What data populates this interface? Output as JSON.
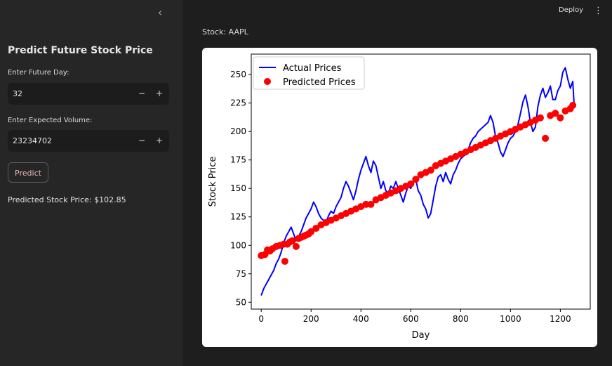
{
  "header": {
    "deploy_label": "Deploy",
    "menu_icon": "kebab-menu-icon"
  },
  "sidebar": {
    "collapse_icon": "chevron-left-icon",
    "title": "Predict Future Stock Price",
    "future_day": {
      "label": "Enter Future Day:",
      "value": "32"
    },
    "volume": {
      "label": "Enter Expected Volume:",
      "value": "23234702"
    },
    "stepper_minus": "−",
    "stepper_plus": "+",
    "predict_label": "Predict",
    "result_text": "Predicted Stock Price: $102.85"
  },
  "main": {
    "stock_label": "Stock: AAPL"
  },
  "chart_data": {
    "type": "line",
    "xlabel": "Day",
    "ylabel": "Stock Price",
    "xlim": [
      -40,
      1320
    ],
    "ylim": [
      44,
      268
    ],
    "xticks": [
      0,
      200,
      400,
      600,
      800,
      1000,
      1200
    ],
    "yticks": [
      50,
      75,
      100,
      125,
      150,
      175,
      200,
      225,
      250
    ],
    "legend_position": "top-left",
    "series": [
      {
        "name": "Actual Prices",
        "kind": "line",
        "color": "#0000ff",
        "x": [
          0,
          10,
          20,
          30,
          40,
          50,
          60,
          70,
          80,
          90,
          100,
          110,
          120,
          130,
          140,
          150,
          160,
          170,
          180,
          190,
          200,
          210,
          220,
          230,
          240,
          250,
          260,
          270,
          280,
          290,
          300,
          310,
          320,
          330,
          340,
          350,
          360,
          370,
          380,
          390,
          400,
          410,
          420,
          430,
          440,
          450,
          460,
          470,
          480,
          490,
          500,
          510,
          520,
          530,
          540,
          550,
          560,
          570,
          580,
          590,
          600,
          610,
          620,
          630,
          640,
          650,
          660,
          670,
          680,
          690,
          700,
          710,
          720,
          730,
          740,
          750,
          760,
          770,
          780,
          790,
          800,
          810,
          820,
          830,
          840,
          850,
          860,
          870,
          880,
          890,
          900,
          910,
          920,
          930,
          940,
          950,
          960,
          970,
          980,
          990,
          1000,
          1010,
          1020,
          1030,
          1040,
          1050,
          1060,
          1070,
          1080,
          1090,
          1100,
          1110,
          1120,
          1130,
          1140,
          1150,
          1160,
          1170,
          1180,
          1190,
          1200,
          1210,
          1220,
          1230,
          1240,
          1250,
          1255
        ],
        "y": [
          56,
          62,
          66,
          70,
          74,
          78,
          84,
          88,
          94,
          102,
          108,
          112,
          116,
          110,
          104,
          108,
          112,
          118,
          124,
          128,
          132,
          138,
          134,
          128,
          124,
          122,
          120,
          126,
          130,
          128,
          134,
          138,
          142,
          150,
          156,
          152,
          146,
          140,
          148,
          158,
          166,
          172,
          178,
          170,
          164,
          174,
          170,
          160,
          150,
          156,
          148,
          146,
          152,
          150,
          156,
          150,
          144,
          138,
          146,
          152,
          150,
          155,
          158,
          148,
          144,
          136,
          132,
          124,
          128,
          140,
          152,
          160,
          162,
          156,
          164,
          158,
          154,
          162,
          166,
          172,
          176,
          178,
          180,
          184,
          190,
          194,
          196,
          200,
          202,
          204,
          206,
          208,
          214,
          208,
          196,
          190,
          182,
          178,
          184,
          190,
          194,
          196,
          200,
          206,
          216,
          226,
          232,
          222,
          208,
          200,
          204,
          222,
          232,
          238,
          230,
          234,
          240,
          228,
          228,
          236,
          240,
          252,
          256,
          246,
          238,
          244,
          225
        ],
        "values_note": "approximate, read from chart"
      },
      {
        "name": "Predicted Prices",
        "kind": "scatter",
        "color": "#ff0000",
        "x": [
          0,
          15,
          25,
          35,
          45,
          60,
          75,
          90,
          95,
          105,
          115,
          125,
          140,
          150,
          160,
          170,
          180,
          190,
          200,
          220,
          240,
          260,
          280,
          300,
          320,
          340,
          360,
          380,
          400,
          420,
          440,
          460,
          480,
          500,
          520,
          540,
          560,
          580,
          600,
          620,
          640,
          660,
          680,
          700,
          720,
          740,
          760,
          780,
          800,
          820,
          840,
          860,
          880,
          900,
          920,
          940,
          960,
          980,
          1000,
          1020,
          1040,
          1060,
          1080,
          1100,
          1120,
          1140,
          1160,
          1180,
          1200,
          1220,
          1240,
          1250
        ],
        "y": [
          91,
          92,
          96,
          95,
          97,
          99,
          100,
          101,
          86,
          101,
          103,
          104,
          99,
          106,
          107,
          108,
          109,
          110,
          112,
          115,
          118,
          120,
          122,
          124,
          126,
          128,
          130,
          132,
          134,
          136,
          136,
          140,
          142,
          144,
          146,
          148,
          150,
          152,
          154,
          158,
          162,
          164,
          166,
          170,
          172,
          174,
          176,
          178,
          180,
          182,
          184,
          186,
          188,
          190,
          192,
          194,
          196,
          198,
          200,
          202,
          204,
          206,
          208,
          210,
          212,
          194,
          214,
          216,
          212,
          218,
          220,
          223
        ]
      }
    ]
  }
}
